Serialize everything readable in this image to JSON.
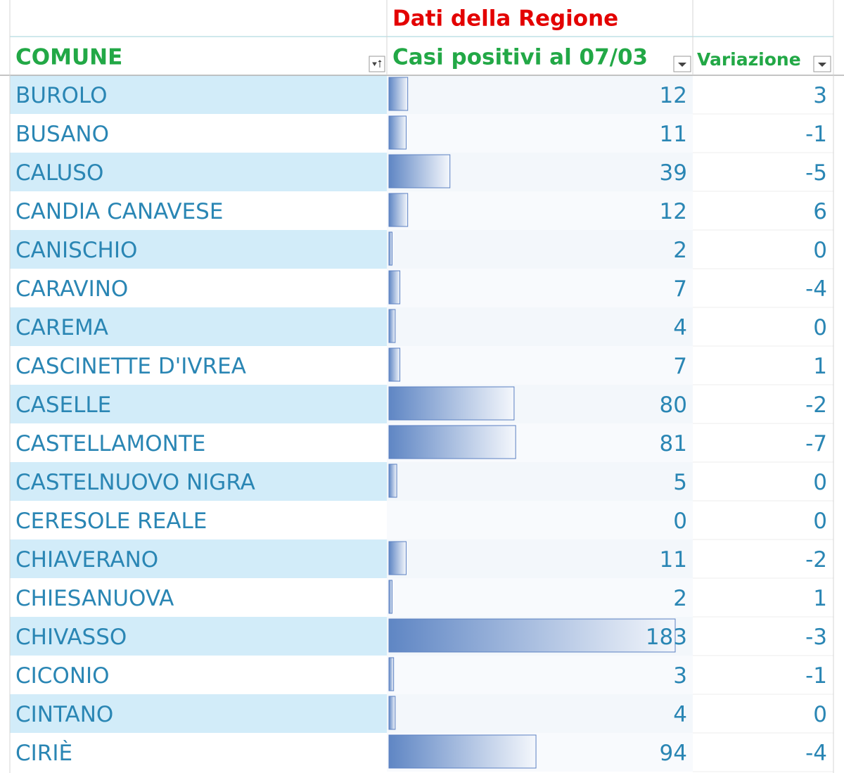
{
  "header": {
    "group": "Dati della Regione",
    "columns": [
      "COMUNE",
      "Casi positivi al 07/03",
      "Variazione"
    ]
  },
  "table": {
    "rows": [
      [
        "BUROLO",
        12,
        3
      ],
      [
        "BUSANO",
        11,
        -1
      ],
      [
        "CALUSO",
        39,
        -5
      ],
      [
        "CANDIA CANAVESE",
        12,
        6
      ],
      [
        "CANISCHIO",
        2,
        0
      ],
      [
        "CARAVINO",
        7,
        -4
      ],
      [
        "CAREMA",
        4,
        0
      ],
      [
        "CASCINETTE D'IVREA",
        7,
        1
      ],
      [
        "CASELLE",
        80,
        -2
      ],
      [
        "CASTELLAMONTE",
        81,
        -7
      ],
      [
        "CASTELNUOVO NIGRA",
        5,
        0
      ],
      [
        "CERESOLE REALE",
        0,
        0
      ],
      [
        "CHIAVERANO",
        11,
        -2
      ],
      [
        "CHIESANUOVA",
        2,
        1
      ],
      [
        "CHIVASSO",
        183,
        -3
      ],
      [
        "CICONIO",
        3,
        -1
      ],
      [
        "CINTANO",
        4,
        0
      ],
      [
        "CIRIÈ",
        94,
        -4
      ]
    ]
  }
}
